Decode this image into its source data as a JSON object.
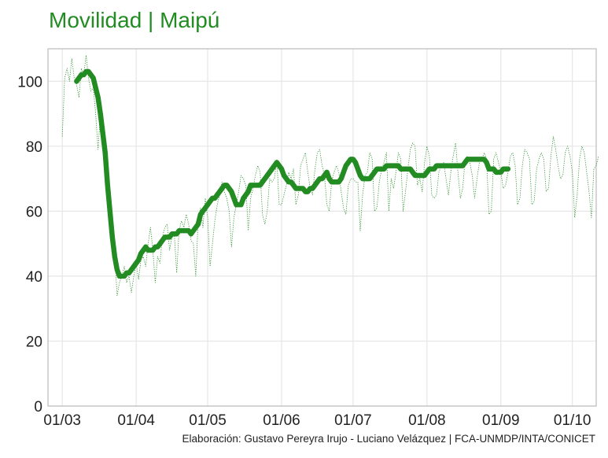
{
  "chart_data": {
    "type": "line",
    "title": "Movilidad | Maipú",
    "caption": "Elaboración: Gustavo Pereyra Irujo - Luciano Velázquez | FCA-UNMDP/INTA/CONICET",
    "xlabel": "",
    "ylabel": "",
    "x_start": "2020-03-01",
    "x_ticks": [
      {
        "label": "01/03",
        "date": "2020-03-01"
      },
      {
        "label": "01/04",
        "date": "2020-04-01"
      },
      {
        "label": "01/05",
        "date": "2020-05-01"
      },
      {
        "label": "01/06",
        "date": "2020-06-01"
      },
      {
        "label": "01/07",
        "date": "2020-07-01"
      },
      {
        "label": "01/08",
        "date": "2020-08-01"
      },
      {
        "label": "01/09",
        "date": "2020-09-01"
      },
      {
        "label": "01/10",
        "date": "2020-10-01"
      }
    ],
    "xlim": [
      "2020-02-24",
      "2020-10-11"
    ],
    "ylim": [
      0,
      110
    ],
    "yticks": [
      0,
      20,
      40,
      60,
      80,
      100
    ],
    "grid": true,
    "series": [
      {
        "role": "daily",
        "style": "dotted-thin",
        "color": "#228B22",
        "start_date": "2020-03-01",
        "values": [
          83,
          101,
          104,
          100,
          107,
          101,
          99,
          95,
          104,
          102,
          108,
          101,
          97,
          98,
          90,
          79,
          90,
          84,
          70,
          72,
          60,
          55,
          47,
          34,
          38,
          40,
          43,
          38,
          40,
          35,
          40,
          44,
          39,
          45,
          46,
          43,
          50,
          55,
          48,
          38,
          46,
          44,
          52,
          55,
          56,
          48,
          52,
          53,
          41,
          54,
          57,
          55,
          59,
          56,
          51,
          50,
          40,
          57,
          61,
          55,
          64,
          58,
          43,
          50,
          57,
          62,
          65,
          69,
          66,
          64,
          60,
          49,
          58,
          62,
          66,
          71,
          70,
          68,
          54,
          64,
          67,
          71,
          74,
          72,
          59,
          56,
          60,
          70,
          69,
          70,
          76,
          62,
          62,
          65,
          68,
          72,
          70,
          73,
          62,
          65,
          74,
          76,
          78,
          72,
          67,
          65,
          73,
          78,
          79,
          74,
          71,
          62,
          60,
          69,
          72,
          74,
          72,
          66,
          61,
          59,
          68,
          70,
          70,
          69,
          69,
          54,
          65,
          71,
          72,
          78,
          76,
          60,
          61,
          69,
          73,
          75,
          78,
          60,
          70,
          67,
          72,
          78,
          76,
          60,
          66,
          73,
          79,
          81,
          80,
          68,
          70,
          66,
          75,
          80,
          77,
          65,
          64,
          65,
          72,
          74,
          75,
          70,
          65,
          72,
          77,
          81,
          72,
          64,
          67,
          76,
          77,
          75,
          71,
          64,
          70,
          75,
          76,
          78,
          76,
          59,
          60,
          76,
          78,
          75,
          72,
          67,
          68,
          72,
          77,
          78,
          74,
          62,
          64,
          74,
          79,
          78,
          76,
          62,
          63,
          73,
          76,
          78,
          76,
          66,
          67,
          77,
          83,
          79,
          74,
          70,
          71,
          78,
          80,
          77,
          72,
          58,
          65,
          76,
          80,
          78,
          72,
          66,
          58,
          73,
          74,
          77
        ]
      },
      {
        "role": "moving-average",
        "style": "solid-thick",
        "color": "#228B22",
        "start_date": "2020-03-07",
        "values": [
          100,
          101,
          102,
          102,
          103,
          103,
          102,
          101,
          98,
          95,
          90,
          84,
          78,
          68,
          60,
          52,
          46,
          42,
          40,
          40,
          40,
          41,
          41,
          42,
          43,
          44,
          45,
          47,
          48,
          49,
          48,
          48,
          48,
          49,
          49,
          50,
          51,
          52,
          52,
          52,
          53,
          53,
          53,
          54,
          54,
          54,
          54,
          54,
          53,
          54,
          55,
          56,
          59,
          60,
          61,
          62,
          63,
          64,
          64,
          65,
          66,
          67,
          68,
          68,
          67,
          66,
          64,
          62,
          62,
          62,
          64,
          65,
          66,
          68,
          68,
          68,
          68,
          68,
          69,
          70,
          71,
          72,
          73,
          74,
          75,
          74,
          73,
          71,
          70,
          69,
          69,
          68,
          67,
          67,
          67,
          67,
          66,
          66,
          67,
          67,
          68,
          69,
          70,
          70,
          71,
          72,
          70,
          69,
          69,
          69,
          69,
          70,
          72,
          74,
          75,
          76,
          76,
          75,
          73,
          71,
          70,
          70,
          70,
          70,
          71,
          72,
          73,
          73,
          73,
          73,
          74,
          74,
          74,
          74,
          74,
          74,
          73,
          73,
          73,
          73,
          73,
          72,
          71,
          71,
          71,
          71,
          71,
          72,
          73,
          73,
          73,
          74,
          74,
          74,
          74,
          74,
          74,
          74,
          74,
          74,
          74,
          74,
          74,
          75,
          76,
          76,
          76,
          76,
          76,
          76,
          76,
          76,
          75,
          73,
          73,
          73,
          72,
          72,
          72,
          73,
          73,
          73
        ]
      }
    ]
  },
  "colors": {
    "line": "#228B22",
    "grid": "#e6e6e6",
    "frame": "#bbbbbb",
    "text": "#222222"
  }
}
